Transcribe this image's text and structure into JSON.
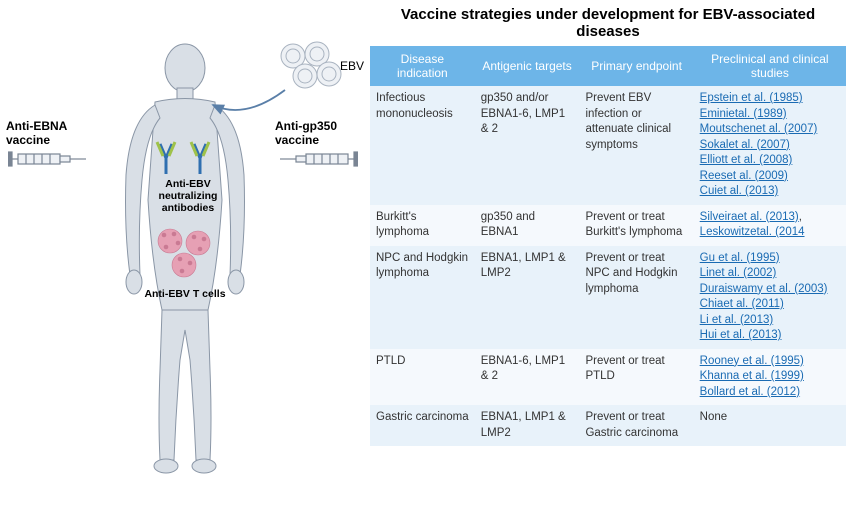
{
  "title": "Vaccine strategies under development for EBV-associated diseases",
  "diagram": {
    "ebv_label": "EBV",
    "left_syringe_label": "Anti-EBNA\nvaccine",
    "right_syringe_label": "Anti-gp350\nvaccine",
    "antibody_label": "Anti-EBV\nneutralizing\nantibodies",
    "tcell_label": "Anti-EBV T cells",
    "body_fill": "#d9dfe6",
    "body_stroke": "#8a96a6",
    "ebv_fill": "#eef1f5",
    "ebv_stroke": "#a9b3c0",
    "antibody_colors": {
      "heavy": "#2f6fb0",
      "light": "#9fc24a"
    },
    "tcell_fill": "#e6a0b4",
    "tcell_stroke": "#c97a93",
    "syringe_stroke": "#7a8594",
    "arrow_stroke": "#5a7fa8"
  },
  "table": {
    "header_bg": "#6db5e8",
    "header_fg": "#ffffff",
    "row_odd_bg": "#e8f2fa",
    "row_even_bg": "#f5f9fd",
    "link_color": "#1a6bb3",
    "columns": [
      "Disease indication",
      "Antigenic targets",
      "Primary endpoint",
      "Preclinical and clinical studies"
    ],
    "col_widths": [
      "22%",
      "22%",
      "24%",
      "32%"
    ],
    "rows": [
      {
        "disease": "Infectious mononucleosis",
        "targets": "gp350 and/or EBNA1-6, LMP1 & 2",
        "endpoint": "Prevent EBV infection or attenuate clinical symptoms",
        "refs": [
          "Epstein et al. (1985)",
          "Eminietal. (1989)",
          "Moutschenet al. (2007)",
          "Sokalet al. (2007)",
          "Elliott et al. (2008)",
          "Reeset al. (2009)",
          "Cuiet al. (2013)"
        ]
      },
      {
        "disease": "Burkitt's lymphoma",
        "targets": "gp350 and EBNA1",
        "endpoint": "Prevent or treat Burkitt's lymphoma",
        "refs": [
          "Silveiraet al. (2013)",
          ", ",
          "Leskowitzetal. (2014"
        ],
        "refs_plain_indices": [
          1
        ]
      },
      {
        "disease": "NPC and Hodgkin lymphoma",
        "targets": "EBNA1, LMP1 & LMP2",
        "endpoint": "Prevent or treat NPC and Hodgkin lymphoma",
        "refs": [
          "Gu et al. (1995)",
          "Linet al. (2002)",
          "Duraiswamy et al. (2003)",
          "Chiaet al. (2011)",
          "Li et al. (2013)",
          "Hui et al. (2013)"
        ]
      },
      {
        "disease": "PTLD",
        "targets": "EBNA1-6, LMP1 & 2",
        "endpoint": "Prevent or treat PTLD",
        "refs": [
          "Rooney et al. (1995)",
          "Khanna et al. (1999)",
          "Bollard et al. (2012)"
        ]
      },
      {
        "disease": "Gastric carcinoma",
        "targets": "EBNA1, LMP1 & LMP2",
        "endpoint": "Prevent or treat Gastric carcinoma",
        "refs": [
          "None"
        ],
        "refs_plain_indices": [
          0
        ]
      }
    ]
  }
}
